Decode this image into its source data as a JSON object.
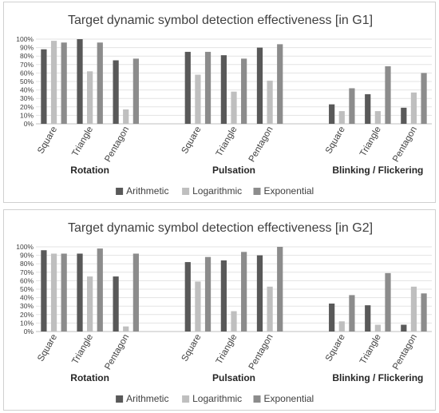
{
  "series_colors": [
    "#595959",
    "#bfbfbf",
    "#8c8c8c"
  ],
  "legend": [
    "Arithmetic",
    "Logarithmic",
    "Exponential"
  ],
  "chart_data": [
    {
      "type": "bar",
      "title": "Target dynamic symbol detection effectiveness [in G1]",
      "groups": [
        "Rotation",
        "Pulsation",
        "Blinking / Flickering"
      ],
      "categories": [
        "Square",
        "Triangle",
        "Pentagon",
        "Square",
        "Triangle",
        "Pentagon",
        "Square",
        "Triangle",
        "Pentagon"
      ],
      "ylim": [
        0,
        100
      ],
      "yticks": [
        "0%",
        "10%",
        "20%",
        "30%",
        "40%",
        "50%",
        "60%",
        "70%",
        "80%",
        "90%",
        "100%"
      ],
      "grid": true,
      "legend_position": "bottom",
      "series": [
        {
          "name": "Arithmetic",
          "values": [
            88,
            100,
            75,
            85,
            81,
            90,
            23,
            35,
            19
          ]
        },
        {
          "name": "Logarithmic",
          "values": [
            98,
            62,
            17,
            58,
            38,
            51,
            15,
            15,
            37
          ]
        },
        {
          "name": "Exponential",
          "values": [
            96,
            96,
            77,
            85,
            77,
            94,
            42,
            68,
            60
          ]
        }
      ]
    },
    {
      "type": "bar",
      "title": "Target dynamic symbol detection effectiveness [in G2]",
      "groups": [
        "Rotation",
        "Pulsation",
        "Blinking / Flickering"
      ],
      "categories": [
        "Square",
        "Triangle",
        "Pentagon",
        "Square",
        "Triangle",
        "Pentagon",
        "Square",
        "Triangle",
        "Pentagon"
      ],
      "ylim": [
        0,
        100
      ],
      "yticks": [
        "0%",
        "10%",
        "20%",
        "30%",
        "40%",
        "50%",
        "60%",
        "70%",
        "80%",
        "90%",
        "100%"
      ],
      "grid": true,
      "legend_position": "bottom",
      "series": [
        {
          "name": "Arithmetic",
          "values": [
            96,
            92,
            65,
            82,
            84,
            90,
            33,
            31,
            8
          ]
        },
        {
          "name": "Logarithmic",
          "values": [
            92,
            65,
            6,
            59,
            24,
            53,
            12,
            8,
            53
          ]
        },
        {
          "name": "Exponential",
          "values": [
            92,
            98,
            92,
            88,
            94,
            100,
            43,
            69,
            45
          ]
        }
      ]
    }
  ]
}
